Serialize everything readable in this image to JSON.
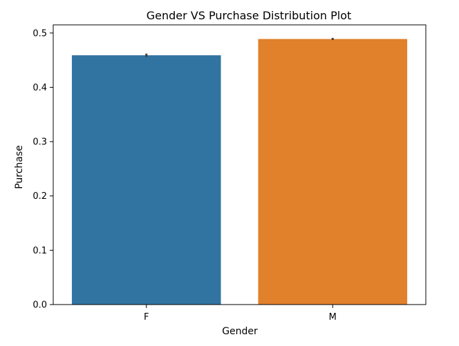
{
  "chart_data": {
    "type": "bar",
    "title": "Gender VS Purchase Distribution Plot",
    "xlabel": "Gender",
    "ylabel": "Purchase",
    "categories": [
      "F",
      "M"
    ],
    "values": [
      0.459,
      0.489
    ],
    "error_bars": [
      [
        0.456,
        0.462
      ],
      [
        0.487,
        0.491
      ]
    ],
    "colors": [
      "#3274a1",
      "#e1812c"
    ],
    "error_color": "#3d3d3d",
    "ylim": [
      0,
      0.515
    ],
    "yticks": [
      0.0,
      0.1,
      0.2,
      0.3,
      0.4,
      0.5
    ],
    "ytick_labels": [
      "0.0",
      "0.1",
      "0.2",
      "0.3",
      "0.4",
      "0.5"
    ],
    "grid": false,
    "legend": "none"
  }
}
